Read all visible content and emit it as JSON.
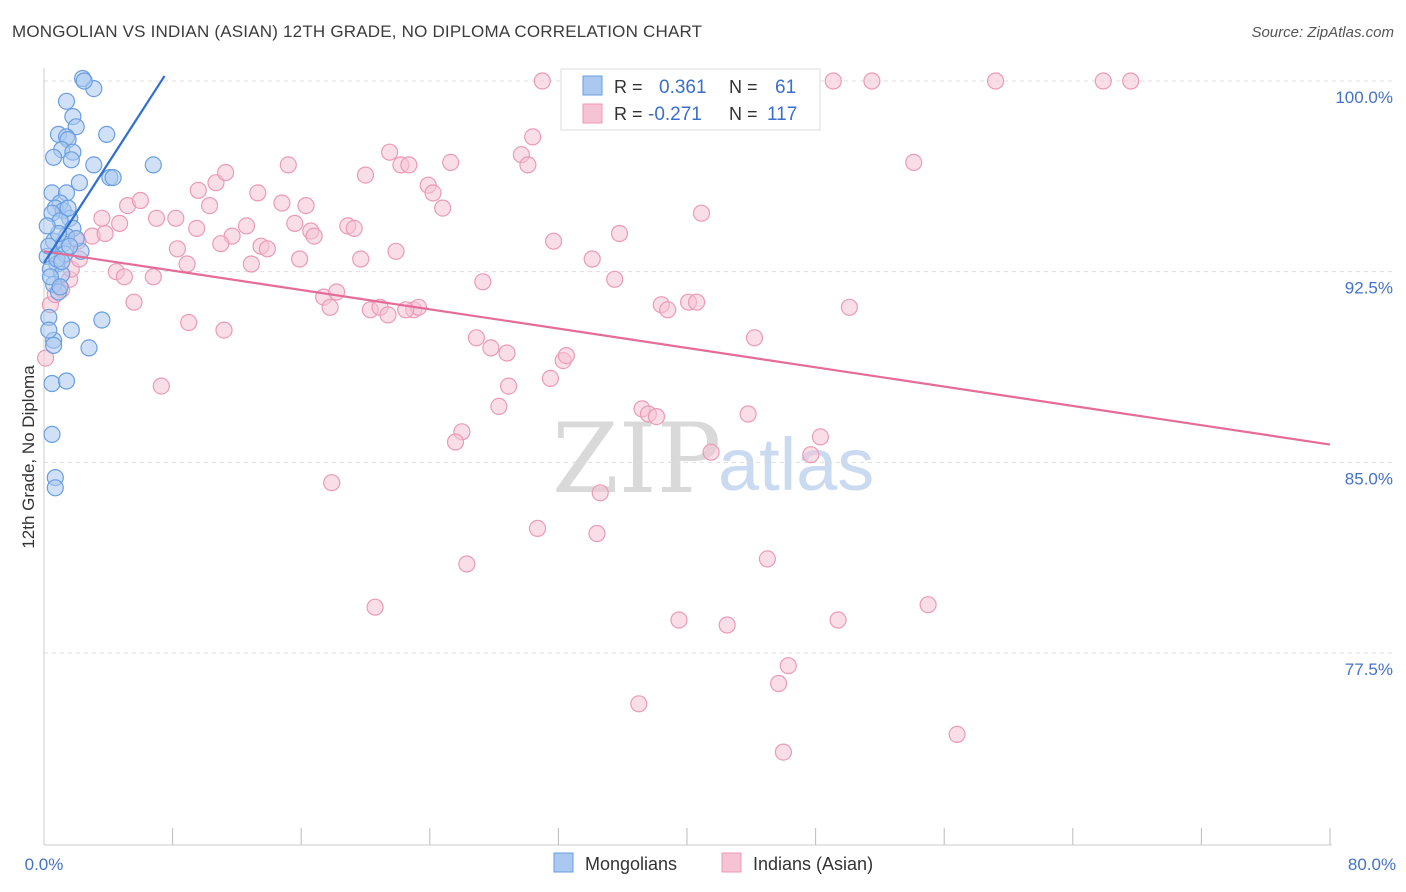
{
  "header": {
    "title": "MONGOLIAN VS INDIAN (ASIAN) 12TH GRADE, NO DIPLOMA CORRELATION CHART",
    "source": "Source: ZipAtlas.com"
  },
  "watermark": {
    "zip": "ZIP",
    "atlas": "atlas"
  },
  "legend_box": {
    "r_label": "R =",
    "n_label": "N =",
    "mongolians": {
      "r": "0.361",
      "n": "61"
    },
    "indians": {
      "r": "-0.271",
      "n": "117"
    }
  },
  "bottom_legend": {
    "mongolians": "Mongolians",
    "indians": "Indians (Asian)"
  },
  "colors": {
    "mongolian_fill": "#aac8f0",
    "mongolian_stroke": "#6a9ee0",
    "mongolian_line": "#2e6fd0",
    "indian_fill": "#f6c3d4",
    "indian_stroke": "#ec9ab6",
    "indian_line": "#e56b98",
    "tick_label": "#4472c4",
    "grid": "#dddddd"
  },
  "chart_data": {
    "type": "scatter",
    "title": "MONGOLIAN VS INDIAN (ASIAN) 12TH GRADE, NO DIPLOMA CORRELATION CHART",
    "xlabel": "",
    "ylabel": "12th Grade, No Diploma",
    "xlim": [
      0,
      80
    ],
    "ylim": [
      71.0,
      100.8
    ],
    "x_tick_labels": {
      "left": "0.0%",
      "right": "80.0%"
    },
    "y_ticks": [
      {
        "value": 100.0,
        "label": "100.0%"
      },
      {
        "value": 92.5,
        "label": "92.5%"
      },
      {
        "value": 85.0,
        "label": "85.0%"
      },
      {
        "value": 77.5,
        "label": "77.5%"
      }
    ],
    "series": [
      {
        "name": "Mongolians",
        "r": 0.361,
        "n": 61,
        "trend": {
          "x0": 0.0,
          "y0": 92.85,
          "x1": 7.5,
          "y1": 100.2
        },
        "points": [
          [
            2.4,
            100.1
          ],
          [
            3.1,
            99.7
          ],
          [
            1.4,
            99.2
          ],
          [
            1.8,
            98.6
          ],
          [
            2.0,
            98.2
          ],
          [
            0.9,
            97.9
          ],
          [
            1.4,
            97.8
          ],
          [
            1.5,
            97.7
          ],
          [
            3.9,
            97.9
          ],
          [
            1.1,
            97.3
          ],
          [
            0.6,
            97.0
          ],
          [
            1.8,
            97.2
          ],
          [
            1.7,
            96.9
          ],
          [
            3.1,
            96.7
          ],
          [
            6.8,
            96.7
          ],
          [
            4.1,
            96.2
          ],
          [
            0.5,
            95.6
          ],
          [
            1.4,
            95.6
          ],
          [
            1.0,
            95.2
          ],
          [
            0.7,
            95.0
          ],
          [
            1.2,
            94.9
          ],
          [
            0.5,
            94.8
          ],
          [
            1.6,
            94.6
          ],
          [
            1.0,
            94.5
          ],
          [
            1.8,
            94.2
          ],
          [
            1.4,
            93.9
          ],
          [
            0.6,
            93.7
          ],
          [
            1.2,
            93.6
          ],
          [
            2.3,
            93.3
          ],
          [
            0.2,
            93.1
          ],
          [
            0.8,
            92.8
          ],
          [
            0.4,
            92.6
          ],
          [
            1.1,
            92.4
          ],
          [
            0.6,
            92.0
          ],
          [
            0.9,
            91.7
          ],
          [
            0.3,
            90.7
          ],
          [
            3.6,
            90.6
          ],
          [
            1.7,
            90.2
          ],
          [
            0.6,
            89.8
          ],
          [
            2.8,
            89.5
          ],
          [
            0.5,
            88.1
          ],
          [
            1.4,
            88.2
          ],
          [
            0.5,
            86.1
          ],
          [
            0.7,
            84.4
          ],
          [
            0.7,
            84.0
          ],
          [
            0.3,
            93.5
          ],
          [
            2.0,
            93.8
          ],
          [
            1.3,
            93.2
          ],
          [
            0.9,
            94.0
          ],
          [
            1.5,
            95.0
          ],
          [
            2.2,
            96.0
          ],
          [
            0.4,
            92.3
          ],
          [
            1.0,
            91.9
          ],
          [
            0.2,
            94.3
          ],
          [
            0.8,
            93.0
          ],
          [
            1.6,
            93.5
          ],
          [
            2.5,
            100.0
          ],
          [
            4.3,
            96.2
          ],
          [
            0.3,
            90.2
          ],
          [
            0.6,
            89.6
          ],
          [
            1.1,
            92.9
          ]
        ]
      },
      {
        "name": "Indians (Asian)",
        "r": -0.271,
        "n": 117,
        "trend": {
          "x0": 0.0,
          "y0": 93.3,
          "x1": 80.0,
          "y1": 85.7
        },
        "points": [
          [
            0.1,
            89.1
          ],
          [
            0.4,
            91.2
          ],
          [
            1.1,
            91.8
          ],
          [
            1.6,
            92.2
          ],
          [
            1.7,
            92.6
          ],
          [
            2.2,
            93.0
          ],
          [
            3.0,
            93.9
          ],
          [
            3.6,
            94.6
          ],
          [
            4.7,
            94.4
          ],
          [
            5.2,
            95.1
          ],
          [
            6.0,
            95.3
          ],
          [
            3.8,
            94.0
          ],
          [
            4.5,
            92.5
          ],
          [
            5.0,
            92.3
          ],
          [
            5.6,
            91.3
          ],
          [
            6.8,
            92.3
          ],
          [
            7.3,
            88.0
          ],
          [
            8.2,
            94.6
          ],
          [
            8.3,
            93.4
          ],
          [
            8.9,
            92.8
          ],
          [
            9.5,
            94.2
          ],
          [
            9.6,
            95.7
          ],
          [
            10.3,
            95.1
          ],
          [
            10.7,
            96.0
          ],
          [
            11.3,
            96.4
          ],
          [
            11.7,
            93.9
          ],
          [
            11.0,
            93.6
          ],
          [
            12.6,
            94.3
          ],
          [
            12.9,
            92.8
          ],
          [
            13.3,
            95.6
          ],
          [
            13.5,
            93.5
          ],
          [
            13.9,
            93.4
          ],
          [
            14.8,
            95.2
          ],
          [
            15.2,
            96.7
          ],
          [
            15.6,
            94.4
          ],
          [
            16.3,
            95.1
          ],
          [
            16.6,
            94.1
          ],
          [
            16.8,
            93.9
          ],
          [
            17.4,
            91.5
          ],
          [
            17.8,
            91.1
          ],
          [
            18.2,
            91.7
          ],
          [
            18.9,
            94.3
          ],
          [
            19.3,
            94.2
          ],
          [
            19.7,
            93.0
          ],
          [
            20.0,
            96.3
          ],
          [
            20.3,
            91.0
          ],
          [
            20.9,
            91.1
          ],
          [
            21.4,
            90.8
          ],
          [
            21.5,
            97.2
          ],
          [
            21.9,
            93.3
          ],
          [
            22.2,
            96.7
          ],
          [
            22.7,
            96.7
          ],
          [
            23.0,
            91.0
          ],
          [
            23.3,
            91.1
          ],
          [
            23.9,
            95.9
          ],
          [
            24.2,
            95.6
          ],
          [
            24.8,
            95.0
          ],
          [
            25.3,
            96.8
          ],
          [
            26.0,
            86.2
          ],
          [
            25.6,
            85.8
          ],
          [
            26.9,
            89.9
          ],
          [
            27.3,
            92.1
          ],
          [
            27.8,
            89.5
          ],
          [
            28.3,
            87.2
          ],
          [
            28.8,
            89.3
          ],
          [
            28.9,
            88.0
          ],
          [
            29.7,
            97.1
          ],
          [
            30.1,
            96.7
          ],
          [
            30.4,
            97.8
          ],
          [
            30.7,
            82.4
          ],
          [
            31.5,
            88.3
          ],
          [
            31.7,
            93.7
          ],
          [
            32.3,
            89.0
          ],
          [
            32.5,
            89.2
          ],
          [
            34.1,
            93.0
          ],
          [
            34.4,
            82.2
          ],
          [
            34.6,
            83.8
          ],
          [
            35.5,
            92.2
          ],
          [
            35.8,
            94.0
          ],
          [
            37.2,
            87.1
          ],
          [
            37.6,
            86.9
          ],
          [
            38.1,
            86.8
          ],
          [
            38.4,
            91.2
          ],
          [
            38.8,
            91.0
          ],
          [
            40.1,
            91.3
          ],
          [
            40.6,
            91.3
          ],
          [
            40.9,
            94.8
          ],
          [
            41.5,
            85.4
          ],
          [
            43.8,
            86.9
          ],
          [
            44.2,
            89.9
          ],
          [
            45.0,
            81.2
          ],
          [
            45.7,
            76.3
          ],
          [
            46.3,
            77.0
          ],
          [
            47.7,
            85.3
          ],
          [
            48.3,
            86.0
          ],
          [
            49.4,
            78.8
          ],
          [
            50.1,
            91.1
          ],
          [
            54.1,
            96.8
          ],
          [
            55.0,
            79.4
          ],
          [
            56.8,
            74.3
          ],
          [
            59.2,
            100.0
          ],
          [
            65.9,
            100.0
          ],
          [
            67.6,
            100.0
          ],
          [
            26.3,
            81.0
          ],
          [
            20.6,
            79.3
          ],
          [
            11.2,
            90.2
          ],
          [
            22.5,
            91.0
          ],
          [
            0.7,
            91.6
          ],
          [
            2.1,
            93.7
          ],
          [
            9.0,
            90.5
          ],
          [
            17.9,
            84.2
          ],
          [
            31.0,
            100.0
          ],
          [
            51.5,
            100.0
          ],
          [
            49.1,
            100.0
          ],
          [
            39.5,
            78.8
          ],
          [
            46.0,
            73.6
          ],
          [
            37.0,
            75.5
          ],
          [
            7.0,
            94.6
          ],
          [
            42.5,
            78.6
          ],
          [
            15.9,
            93.0
          ]
        ]
      }
    ]
  }
}
